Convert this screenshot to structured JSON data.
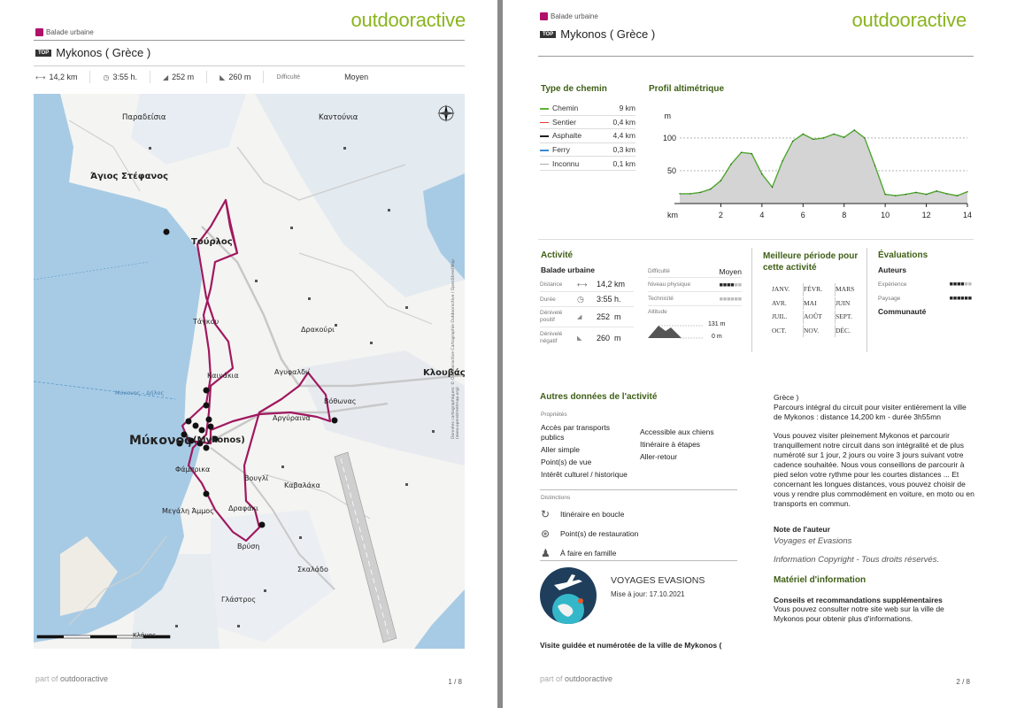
{
  "brand": "outdooractive",
  "category": "Balade urbaine",
  "top_badge": "TOP",
  "title": "Mykonos ( Grèce )",
  "stats": {
    "distance": "14,2 km",
    "duration": "3:55 h.",
    "ascent": "252 m",
    "descent": "260 m",
    "difficulty_label": "Difficulté",
    "difficulty_value": "Moyen"
  },
  "map_labels": {
    "paradeisia": "Παραδείσια",
    "kantounia": "Καντούνια",
    "agios_stefanos": "Άγιος Στέφανος",
    "tourlos": "Τούρλος",
    "tagkou": "Τάγκου",
    "drakouri": "Δρακούρι",
    "kalanakia": "Καινάκια",
    "agyfaldi": "Αγυφαλδιί",
    "klouvas": "Κλουβάς",
    "vothonas": "Βόθωνας",
    "argyraina": "Αργύραινα",
    "mykonos": "Μύκονος",
    "mykonos_latin": "(Mykonos)",
    "fabrika": "Φάμπρικα",
    "vougli": "Βουγλί",
    "kavalaka": "Καβαλάκα",
    "megali_ammos": "Μεγάλη Άμμος",
    "drafaki": "Δραφάκι",
    "vrysi": "Βρύση",
    "skalado": "Σκαλάδο",
    "glastros": "Γλάστρος",
    "ferry_note": "Μύκονος - Δήλος",
    "scale_label": "Κλάμος",
    "copyright": "Données cartographiques: © Outdooractive Cartographie Outdooractive / OpenStreetMap (www.openstreetmap.org)"
  },
  "footer": {
    "prefix": "part of",
    "brand": "outdooractive",
    "page1": "1 / 8",
    "page2": "2 / 8"
  },
  "path_types": {
    "title": "Type de chemin",
    "items": [
      {
        "name": "Chemin",
        "value": "9 km",
        "color": "#5fb33a"
      },
      {
        "name": "Sentier",
        "value": "0,4 km",
        "color": "#e03a3a"
      },
      {
        "name": "Asphalte",
        "value": "4,4 km",
        "color": "#222222"
      },
      {
        "name": "Ferry",
        "value": "0,3 km",
        "color": "#3a8ad4"
      },
      {
        "name": "Inconnu",
        "value": "0,1 km",
        "color": "#aaaaaa"
      }
    ]
  },
  "profile": {
    "title": "Profil altimétrique",
    "unit_y": "m",
    "unit_x": "km",
    "y_ticks": [
      "100",
      "50"
    ],
    "x_ticks": [
      "2",
      "4",
      "6",
      "8",
      "10",
      "12",
      "14"
    ]
  },
  "chart_data": {
    "type": "area",
    "title": "Profil altimétrique",
    "xlabel": "km",
    "ylabel": "m",
    "x": [
      0,
      0.5,
      1,
      1.5,
      2,
      2.5,
      3,
      3.5,
      4,
      4.5,
      5,
      5.5,
      6,
      6.5,
      7,
      7.5,
      8,
      8.5,
      9,
      9.5,
      10,
      10.5,
      11,
      11.5,
      12,
      12.5,
      13,
      13.5,
      14
    ],
    "y": [
      15,
      15,
      17,
      22,
      35,
      60,
      78,
      76,
      45,
      25,
      65,
      95,
      106,
      98,
      100,
      106,
      101,
      112,
      100,
      58,
      14,
      12,
      14,
      17,
      14,
      19,
      15,
      12,
      18
    ],
    "xlim": [
      0,
      14
    ],
    "ylim": [
      0,
      135
    ],
    "grid": true
  },
  "activity": {
    "title": "Activité",
    "type": "Balade urbaine",
    "distance_label": "Distance",
    "distance_value": "14,2",
    "distance_unit": "km",
    "duration_label": "Durée",
    "duration_value": "3:55",
    "duration_unit": "h.",
    "ascent_label": "Dénivelé positif",
    "ascent_value": "252",
    "ascent_unit": "m",
    "descent_label": "Dénivelé négatif",
    "descent_value": "260",
    "descent_unit": "m",
    "difficulty_label": "Difficulté",
    "difficulty_value": "Moyen",
    "physical_label": "Niveau physique",
    "physical_level": 0.6,
    "technique_label": "Technicité",
    "technique_level": 0,
    "altitude_label": "Altitude",
    "alt_max": "131 m",
    "alt_min": "0 m"
  },
  "best_period": {
    "title": "Meilleure période pour cette activité",
    "months": [
      "JANV.",
      "FÉVR.",
      "MARS",
      "AVR.",
      "MAI",
      "JUIN",
      "JUIL.",
      "AOÛT",
      "SEPT.",
      "OCT.",
      "NOV.",
      "DÉC."
    ]
  },
  "ratings": {
    "title": "Évaluations",
    "authors": "Auteurs",
    "experience": "Expérience",
    "experience_level": 0.6,
    "landscape": "Paysage",
    "landscape_level": 1.0,
    "community": "Communauté"
  },
  "other_data": {
    "title": "Autres données de l'activité",
    "properties_label": "Propriétés",
    "properties_left": [
      "Accès par transports publics",
      "Aller simple",
      "Point(s) de vue",
      "Intérêt culturel / historique"
    ],
    "properties_right": [
      "Accessible aux chiens",
      "Itinéraire à étapes",
      "Aller-retour"
    ],
    "distinctions_label": "Distinctions",
    "distinctions": [
      {
        "icon": "loop-icon",
        "label": "Itinéraire en boucle"
      },
      {
        "icon": "restaurant-icon",
        "label": "Point(s) de restauration"
      },
      {
        "icon": "family-icon",
        "label": "À faire en famille"
      }
    ]
  },
  "author_card": {
    "name": "VOYAGES EVASIONS",
    "updated": "Mise à jour: 17.10.2021"
  },
  "summary": "Visite guidée et numérotée de la ville de Mykonos (",
  "description": {
    "country": "Grèce )",
    "para1": "Parcours intégral du circuit pour visiter entièrement la ville de Mykonos : distance 14,200 km - durée 3h55mn",
    "para2": "Vous pouvez visiter pleinement Mykonos et parcourir tranquillement notre circuit dans son intégralité et de plus numéroté sur 1 jour, 2 jours ou voire 3 jours suivant votre cadence souhaitée. Nous vous conseillons de parcourir à pied selon votre rythme pour les courtes distances ... Et concernant les longues distances, vous pouvez choisir de vous y rendre plus commodément en voiture, en moto ou en transports en commun.",
    "author_note_title": "Note de l'auteur",
    "author_note": "Voyages et Evasions",
    "copyright": "Information Copyright - Tous droits réservés.",
    "material_title": "Matériel d'information",
    "tips_title": "Conseils et recommandations supplémentaires",
    "tips": "Vous pouvez consulter notre site web sur la ville de Mykonos pour obtenir plus d'informations."
  }
}
